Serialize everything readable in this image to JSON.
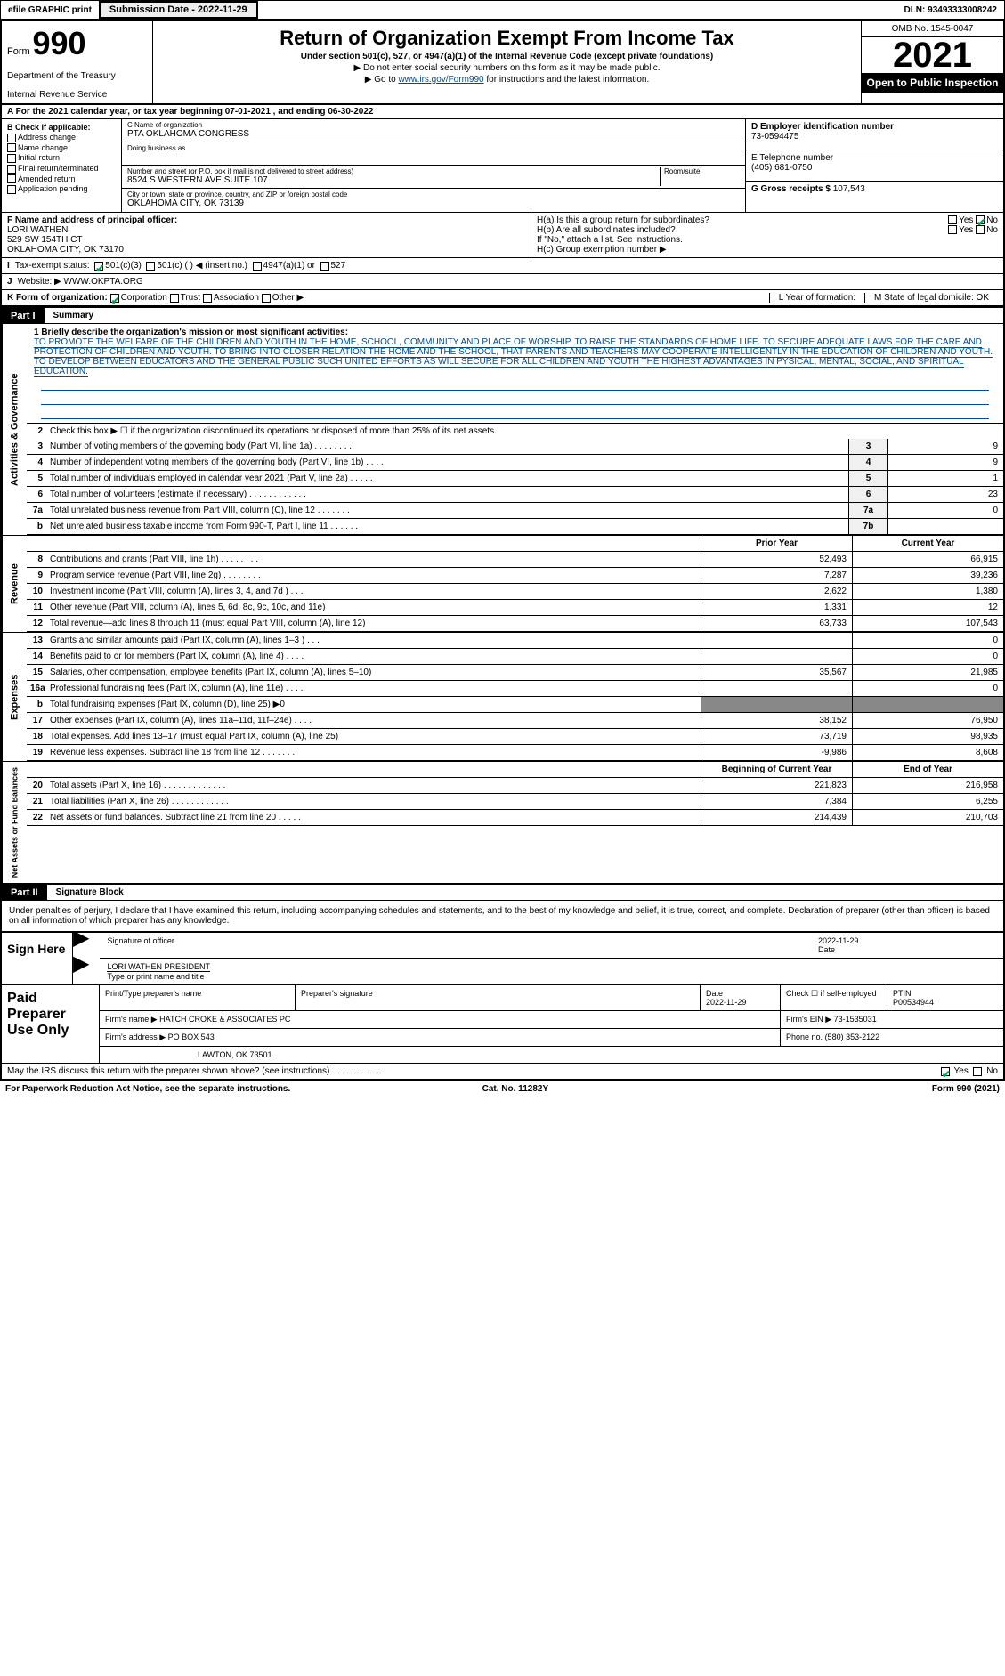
{
  "topbar": {
    "efile": "efile GRAPHIC print",
    "submission": "Submission Date - 2022-11-29",
    "dln": "DLN: 93493333008242"
  },
  "header": {
    "form_word": "Form",
    "form_num": "990",
    "dept": "Department of the Treasury",
    "irs": "Internal Revenue Service",
    "title": "Return of Organization Exempt From Income Tax",
    "sub": "Under section 501(c), 527, or 4947(a)(1) of the Internal Revenue Code (except private foundations)",
    "note1": "▶ Do not enter social security numbers on this form as it may be made public.",
    "note2_pre": "▶ Go to ",
    "note2_link": "www.irs.gov/Form990",
    "note2_post": " for instructions and the latest information.",
    "omb": "OMB No. 1545-0047",
    "year": "2021",
    "open": "Open to Public Inspection"
  },
  "period": "A For the 2021 calendar year, or tax year beginning 07-01-2021  , and ending 06-30-2022",
  "colB": {
    "header": "B Check if applicable:",
    "items": [
      "Address change",
      "Name change",
      "Initial return",
      "Final return/terminated",
      "Amended return",
      "Application pending"
    ]
  },
  "colC": {
    "name_lbl": "C Name of organization",
    "name": "PTA OKLAHOMA CONGRESS",
    "dba_lbl": "Doing business as",
    "street_lbl": "Number and street (or P.O. box if mail is not delivered to street address)",
    "street": "8524 S WESTERN AVE SUITE 107",
    "room_lbl": "Room/suite",
    "city_lbl": "City or town, state or province, country, and ZIP or foreign postal code",
    "city": "OKLAHOMA CITY, OK  73139"
  },
  "colD": {
    "ein_lbl": "D Employer identification number",
    "ein": "73-0594475",
    "tel_lbl": "E Telephone number",
    "tel": "(405) 681-0750",
    "gross_lbl": "G Gross receipts $",
    "gross": "107,543"
  },
  "rowF": {
    "lbl": "F  Name and address of principal officer:",
    "name": "LORI WATHEN",
    "addr1": "529 SW 154TH CT",
    "addr2": "OKLAHOMA CITY, OK  73170"
  },
  "rowH": {
    "a": "H(a)  Is this a group return for subordinates?",
    "yes": "Yes",
    "no": "No",
    "b": "H(b)  Are all subordinates included?",
    "attach": "If \"No,\" attach a list. See instructions.",
    "c": "H(c)  Group exemption number ▶"
  },
  "rowI": {
    "lbl": "Tax-exempt status:",
    "a": "501(c)(3)",
    "b": "501(c) (  ) ◀ (insert no.)",
    "c": "4947(a)(1) or",
    "d": "527"
  },
  "rowJ": {
    "lbl": "Website: ▶",
    "val": "WWW.OKPTA.ORG"
  },
  "rowK": {
    "lbl": "K Form of organization:",
    "opts": [
      "Corporation",
      "Trust",
      "Association",
      "Other ▶"
    ],
    "l_lbl": "L Year of formation:",
    "m_lbl": "M State of legal domicile:",
    "m_val": "OK"
  },
  "part1": {
    "tag": "Part I",
    "title": "Summary"
  },
  "mission": {
    "lbl": "1   Briefly describe the organization's mission or most significant activities:",
    "txt": "TO PROMOTE THE WELFARE OF THE CHILDREN AND YOUTH IN THE HOME, SCHOOL, COMMUNITY AND PLACE OF WORSHIP. TO RAISE THE STANDARDS OF HOME LIFE. TO SECURE ADEQUATE LAWS FOR THE CARE AND PROTECTION OF CHILDREN AND YOUTH. TO BRING INTO CLOSER RELATION THE HOME AND THE SCHOOL, THAT PARENTS AND TEACHERS MAY COOPERATE INTELLIGENTLY IN THE EDUCATION OF CHILDREN AND YOUTH. TO DEVELOP BETWEEN EDUCATORS AND THE GENERAL PUBLIC SUCH UNITED EFFORTS AS WILL SECURE FOR ALL CHILDREN AND YOUTH THE HIGHEST ADVANTAGES IN PYSICAL, MENTAL, SOCIAL, AND SPIRITUAL EDUCATION."
  },
  "gov": {
    "line2": "Check this box ▶ ☐ if the organization discontinued its operations or disposed of more than 25% of its net assets.",
    "rows": [
      {
        "n": "3",
        "d": "Number of voting members of the governing body (Part VI, line 1a)  .  .  .  .  .  .  .  .",
        "b": "3",
        "v": "9"
      },
      {
        "n": "4",
        "d": "Number of independent voting members of the governing body (Part VI, line 1b)  .  .  .  .",
        "b": "4",
        "v": "9"
      },
      {
        "n": "5",
        "d": "Total number of individuals employed in calendar year 2021 (Part V, line 2a)  .  .  .  .  .",
        "b": "5",
        "v": "1"
      },
      {
        "n": "6",
        "d": "Total number of volunteers (estimate if necessary)  .  .  .  .  .  .  .  .  .  .  .  .",
        "b": "6",
        "v": "23"
      },
      {
        "n": "7a",
        "d": "Total unrelated business revenue from Part VIII, column (C), line 12  .  .  .  .  .  .  .",
        "b": "7a",
        "v": "0"
      },
      {
        "n": "b",
        "d": "Net unrelated business taxable income from Form 990-T, Part I, line 11  .  .  .  .  .  .",
        "b": "7b",
        "v": ""
      }
    ]
  },
  "colHeaders": {
    "prior": "Prior Year",
    "current": "Current Year"
  },
  "revenue": {
    "rows": [
      {
        "n": "8",
        "d": "Contributions and grants (Part VIII, line 1h)  .  .  .  .  .  .  .  .",
        "p": "52,493",
        "c": "66,915"
      },
      {
        "n": "9",
        "d": "Program service revenue (Part VIII, line 2g)  .  .  .  .  .  .  .  .",
        "p": "7,287",
        "c": "39,236"
      },
      {
        "n": "10",
        "d": "Investment income (Part VIII, column (A), lines 3, 4, and 7d )  .  .  .",
        "p": "2,622",
        "c": "1,380"
      },
      {
        "n": "11",
        "d": "Other revenue (Part VIII, column (A), lines 5, 6d, 8c, 9c, 10c, and 11e)",
        "p": "1,331",
        "c": "12"
      },
      {
        "n": "12",
        "d": "Total revenue—add lines 8 through 11 (must equal Part VIII, column (A), line 12)",
        "p": "63,733",
        "c": "107,543"
      }
    ]
  },
  "expenses": {
    "rows": [
      {
        "n": "13",
        "d": "Grants and similar amounts paid (Part IX, column (A), lines 1–3 )  .  .  .",
        "p": "",
        "c": "0"
      },
      {
        "n": "14",
        "d": "Benefits paid to or for members (Part IX, column (A), line 4)  .  .  .  .",
        "p": "",
        "c": "0"
      },
      {
        "n": "15",
        "d": "Salaries, other compensation, employee benefits (Part IX, column (A), lines 5–10)",
        "p": "35,567",
        "c": "21,985"
      },
      {
        "n": "16a",
        "d": "Professional fundraising fees (Part IX, column (A), line 11e)  .  .  .  .",
        "p": "",
        "c": "0"
      },
      {
        "n": "b",
        "d": "Total fundraising expenses (Part IX, column (D), line 25) ▶0",
        "p": "grey",
        "c": "grey"
      },
      {
        "n": "17",
        "d": "Other expenses (Part IX, column (A), lines 11a–11d, 11f–24e)  .  .  .  .",
        "p": "38,152",
        "c": "76,950"
      },
      {
        "n": "18",
        "d": "Total expenses. Add lines 13–17 (must equal Part IX, column (A), line 25)",
        "p": "73,719",
        "c": "98,935"
      },
      {
        "n": "19",
        "d": "Revenue less expenses. Subtract line 18 from line 12  .  .  .  .  .  .  .",
        "p": "-9,986",
        "c": "8,608"
      }
    ]
  },
  "netHeaders": {
    "begin": "Beginning of Current Year",
    "end": "End of Year"
  },
  "net": {
    "rows": [
      {
        "n": "20",
        "d": "Total assets (Part X, line 16)  .  .  .  .  .  .  .  .  .  .  .  .  .",
        "p": "221,823",
        "c": "216,958"
      },
      {
        "n": "21",
        "d": "Total liabilities (Part X, line 26)  .  .  .  .  .  .  .  .  .  .  .  .",
        "p": "7,384",
        "c": "6,255"
      },
      {
        "n": "22",
        "d": "Net assets or fund balances. Subtract line 21 from line 20  .  .  .  .  .",
        "p": "214,439",
        "c": "210,703"
      }
    ]
  },
  "part2": {
    "tag": "Part II",
    "title": "Signature Block"
  },
  "sig": {
    "decl": "Under penalties of perjury, I declare that I have examined this return, including accompanying schedules and statements, and to the best of my knowledge and belief, it is true, correct, and complete. Declaration of preparer (other than officer) is based on all information of which preparer has any knowledge.",
    "sign_here": "Sign Here",
    "sig_officer": "Signature of officer",
    "date": "2022-11-29",
    "date_lbl": "Date",
    "name": "LORI WATHEN  PRESIDENT",
    "name_lbl": "Type or print name and title"
  },
  "prep": {
    "header": "Paid Preparer Use Only",
    "r1": {
      "a": "Print/Type preparer's name",
      "b": "Preparer's signature",
      "c": "Date",
      "cv": "2022-11-29",
      "d": "Check ☐ if self-employed",
      "e": "PTIN",
      "ev": "P00534944"
    },
    "r2": {
      "a": "Firm's name    ▶",
      "av": "HATCH CROKE & ASSOCIATES PC",
      "b": "Firm's EIN ▶",
      "bv": "73-1535031"
    },
    "r3": {
      "a": "Firm's address ▶",
      "av": "PO BOX 543",
      "b": "Phone no.",
      "bv": "(580) 353-2122"
    },
    "r4": "LAWTON, OK  73501"
  },
  "foot": {
    "q": "May the IRS discuss this return with the preparer shown above? (see instructions)  .  .  .  .  .  .  .  .  .  .",
    "yes": "Yes",
    "no": "No",
    "pra": "For Paperwork Reduction Act Notice, see the separate instructions.",
    "cat": "Cat. No. 11282Y",
    "frm": "Form 990 (2021)"
  },
  "sideTabs": {
    "gov": "Activities & Governance",
    "rev": "Revenue",
    "exp": "Expenses",
    "net": "Net Assets or Fund Balances"
  }
}
